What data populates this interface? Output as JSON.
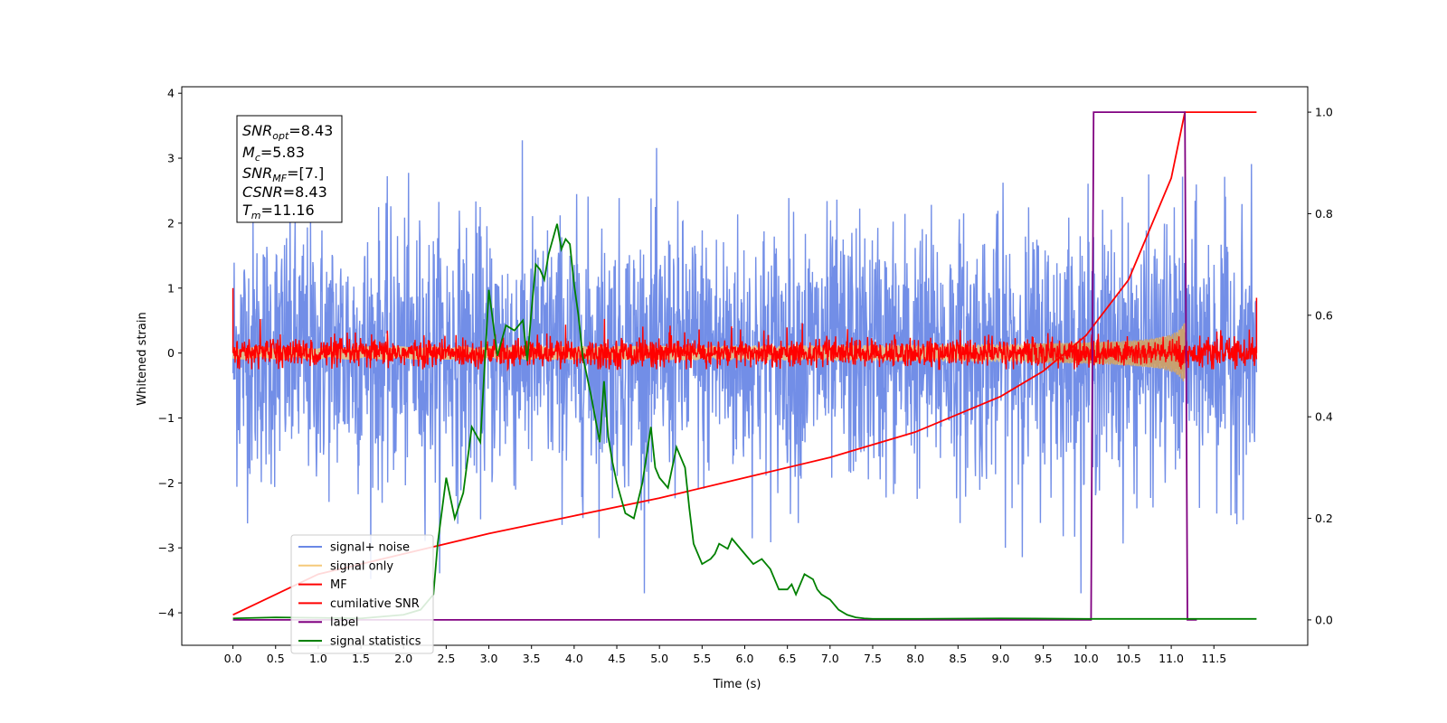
{
  "chart_data": {
    "type": "line",
    "title": "",
    "xlabel": "Time (s)",
    "ylabel": "Whitened strain",
    "xlim": [
      -0.6,
      12.6
    ],
    "ylim": [
      -4.5,
      4.1
    ],
    "y2lim": [
      -0.05,
      1.05
    ],
    "grid": false,
    "legend_position": "lower-left",
    "x_ticks": [
      "0.0",
      "0.5",
      "1.0",
      "1.5",
      "2.0",
      "2.5",
      "3.0",
      "3.5",
      "4.0",
      "4.5",
      "5.0",
      "5.5",
      "6.0",
      "6.5",
      "7.0",
      "7.5",
      "8.0",
      "8.5",
      "9.0",
      "9.5",
      "10.0",
      "10.5",
      "11.0",
      "11.5"
    ],
    "y_ticks": [
      "4",
      "3",
      "2",
      "1",
      "0",
      "−1",
      "−2",
      "−3",
      "−4"
    ],
    "y2_ticks": [
      "1.0",
      "0.8",
      "0.6",
      "0.4",
      "0.2",
      "0.0"
    ],
    "annotation": {
      "snr_opt": "8.43",
      "mc": "5.83",
      "snr_mf": "[7.]",
      "csnr": "8.43",
      "tm": "11.16"
    },
    "series": [
      {
        "name": "signal+ noise",
        "color": "#6a88e6",
        "axis": "left",
        "description_range": [
          -3.7,
          3.7
        ],
        "x_range": [
          0.0,
          12.0
        ]
      },
      {
        "name": "signal only",
        "color": "#f5c97a",
        "axis": "left",
        "chirp_end": 11.16,
        "peak_amplitude": 0.5
      },
      {
        "name": "MF",
        "color": "#ff0000",
        "axis": "left",
        "description_range": [
          -0.25,
          0.5
        ]
      },
      {
        "name": "cumilative SNR",
        "color": "#ff0000",
        "axis": "right",
        "x": [
          0.0,
          1.0,
          2.0,
          3.0,
          4.0,
          5.0,
          6.0,
          7.0,
          8.0,
          9.0,
          9.5,
          10.0,
          10.5,
          11.0,
          11.16,
          12.0
        ],
        "values": [
          0.01,
          0.09,
          0.13,
          0.17,
          0.205,
          0.24,
          0.28,
          0.32,
          0.37,
          0.44,
          0.49,
          0.56,
          0.67,
          0.87,
          1.0,
          1.0
        ]
      },
      {
        "name": "label",
        "color": "#800080",
        "axis": "right",
        "x": [
          0.0,
          10.06,
          10.09,
          11.16,
          11.19,
          11.3
        ],
        "values": [
          0.0,
          0.0,
          1.0,
          1.0,
          0.0,
          0.0
        ]
      },
      {
        "name": "signal statistics",
        "color": "#008000",
        "axis": "right",
        "x": [
          0.0,
          0.5,
          1.0,
          1.5,
          2.0,
          2.2,
          2.35,
          2.4,
          2.5,
          2.6,
          2.7,
          2.8,
          2.9,
          3.0,
          3.1,
          3.2,
          3.3,
          3.4,
          3.45,
          3.5,
          3.55,
          3.6,
          3.65,
          3.7,
          3.8,
          3.85,
          3.9,
          3.95,
          4.0,
          4.05,
          4.1,
          4.2,
          4.3,
          4.35,
          4.4,
          4.45,
          4.5,
          4.6,
          4.7,
          4.8,
          4.9,
          4.95,
          5.0,
          5.1,
          5.2,
          5.3,
          5.35,
          5.4,
          5.5,
          5.6,
          5.65,
          5.7,
          5.8,
          5.85,
          5.9,
          6.0,
          6.1,
          6.2,
          6.3,
          6.4,
          6.5,
          6.55,
          6.6,
          6.7,
          6.8,
          6.85,
          6.9,
          7.0,
          7.1,
          7.2,
          7.3,
          7.4,
          7.5,
          8.0,
          9.0,
          10.0,
          11.0,
          12.0
        ],
        "values": [
          0.003,
          0.005,
          0.004,
          0.003,
          0.01,
          0.02,
          0.05,
          0.15,
          0.28,
          0.2,
          0.25,
          0.38,
          0.35,
          0.65,
          0.52,
          0.58,
          0.57,
          0.59,
          0.51,
          0.61,
          0.7,
          0.69,
          0.67,
          0.72,
          0.78,
          0.73,
          0.75,
          0.74,
          0.66,
          0.6,
          0.52,
          0.44,
          0.35,
          0.47,
          0.36,
          0.31,
          0.27,
          0.21,
          0.2,
          0.27,
          0.38,
          0.3,
          0.28,
          0.26,
          0.34,
          0.3,
          0.22,
          0.15,
          0.11,
          0.12,
          0.13,
          0.15,
          0.14,
          0.16,
          0.15,
          0.13,
          0.11,
          0.12,
          0.1,
          0.06,
          0.06,
          0.07,
          0.05,
          0.09,
          0.08,
          0.06,
          0.05,
          0.04,
          0.02,
          0.01,
          0.005,
          0.003,
          0.002,
          0.002,
          0.003,
          0.002,
          0.002,
          0.002
        ]
      }
    ]
  }
}
